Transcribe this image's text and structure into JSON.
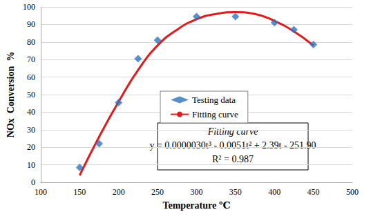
{
  "chart_data": {
    "type": "scatter",
    "x_label": "Temperature ℃",
    "y_label": "NOx  Conversion  %",
    "xlim": [
      100,
      500
    ],
    "xticks": [
      100,
      150,
      200,
      250,
      300,
      350,
      400,
      450,
      500
    ],
    "ylim": [
      0,
      100
    ],
    "yticks": [
      0,
      10,
      20,
      30,
      40,
      50,
      60,
      70,
      80,
      90,
      100
    ],
    "grid": true,
    "legend": "center",
    "series": [
      {
        "name": "Testing data",
        "type": "scatter",
        "marker": "diamond",
        "color": "#2e74c0",
        "x": [
          150,
          175,
          200,
          225,
          250,
          300,
          350,
          400,
          425,
          450
        ],
        "values": [
          8.5,
          22,
          45.5,
          70.5,
          81,
          94.5,
          94.5,
          91,
          87,
          78.5
        ]
      },
      {
        "name": "Fitting curve",
        "type": "line",
        "marker": "none",
        "line_style": "solid",
        "color": "#e31a1c",
        "x": [
          150,
          175,
          200,
          225,
          250,
          275,
          300,
          325,
          350,
          375,
          400,
          425,
          450
        ],
        "values": [
          4,
          26,
          46,
          64,
          78,
          87,
          93,
          96,
          97,
          96,
          92,
          86,
          78
        ]
      }
    ],
    "annotations": [
      "Fitting curve",
      "y = 0.0000030t³ - 0.0051t² + 2.39t - 251.90",
      "R² = 0.987"
    ]
  }
}
